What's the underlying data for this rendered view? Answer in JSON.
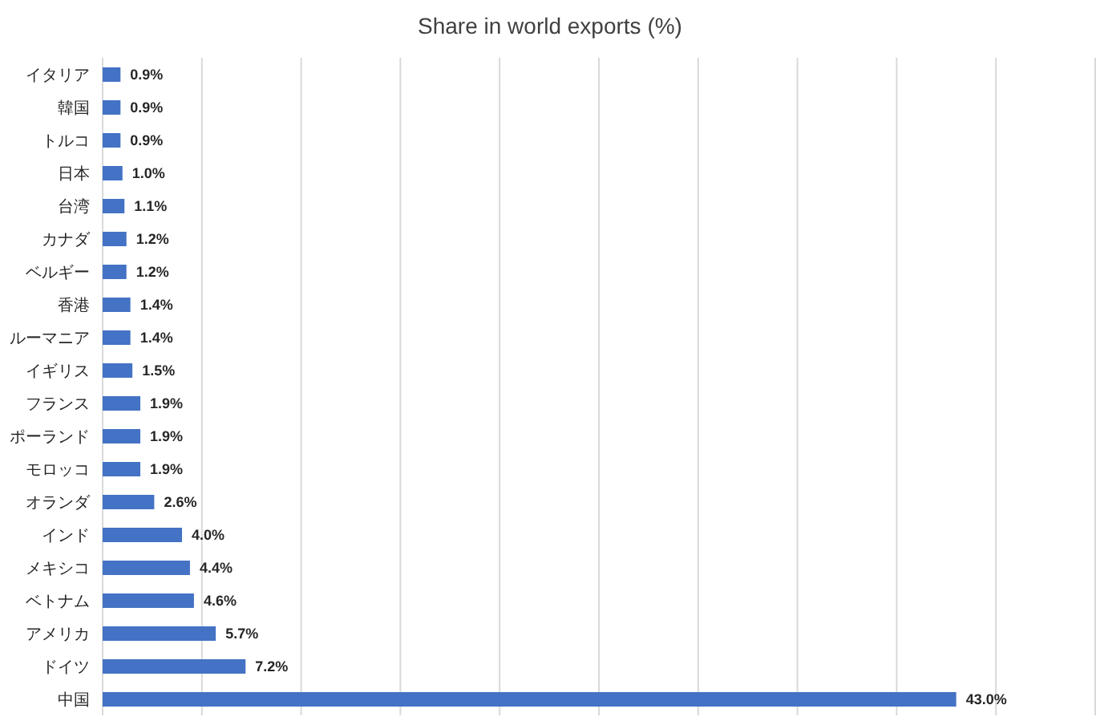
{
  "chart_data": {
    "type": "bar",
    "orientation": "horizontal",
    "title": "Share in world exports (%)",
    "categories": [
      "イタリア",
      "韓国",
      "トルコ",
      "日本",
      "台湾",
      "カナダ",
      "ベルギー",
      "香港",
      "ルーマニア",
      "イギリス",
      "フランス",
      "ポーランド",
      "モロッコ",
      "オランダ",
      "インド",
      "メキシコ",
      "ベトナム",
      "アメリカ",
      "ドイツ",
      "中国"
    ],
    "values": [
      0.9,
      0.9,
      0.9,
      1.0,
      1.1,
      1.2,
      1.2,
      1.4,
      1.4,
      1.5,
      1.9,
      1.9,
      1.9,
      2.6,
      4.0,
      4.4,
      4.6,
      5.7,
      7.2,
      43.0
    ],
    "value_labels": [
      "0.9%",
      "0.9%",
      "0.9%",
      "1.0%",
      "1.1%",
      "1.2%",
      "1.2%",
      "1.4%",
      "1.4%",
      "1.5%",
      "1.9%",
      "1.9%",
      "1.9%",
      "2.6%",
      "4.0%",
      "4.4%",
      "4.6%",
      "5.7%",
      "7.2%",
      "43.0%"
    ],
    "color": "#4472c4",
    "xlim": [
      0,
      50
    ],
    "grid": "x",
    "tick_labels": "y"
  }
}
